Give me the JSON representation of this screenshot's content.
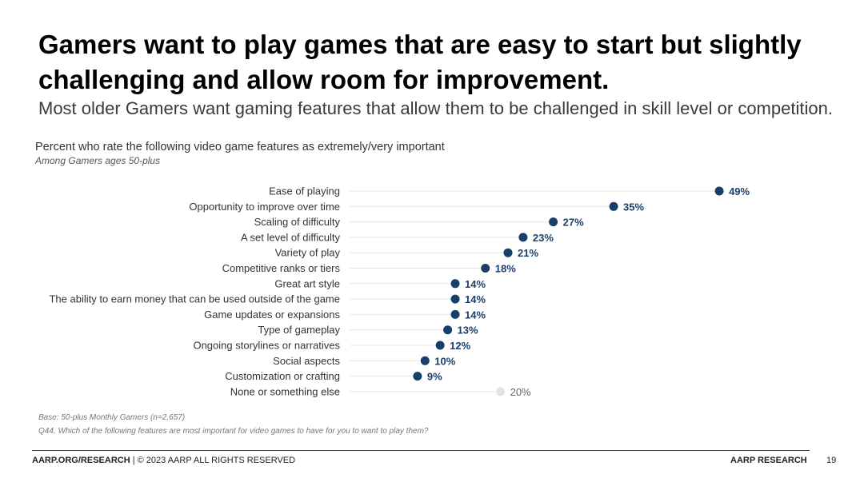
{
  "header": {
    "title": "Gamers want to play games that are easy to start but slightly challenging and allow room for improvement.",
    "subtitle": "Most older Gamers want gaming features that allow them to be challenged in skill level or competition."
  },
  "chart_data": {
    "type": "scatter",
    "title": "Percent who rate the following video game features as extremely/very important",
    "subtitle": "Among Gamers ages 50-plus",
    "categories": [
      "Ease of playing",
      "Opportunity to improve over time",
      "Scaling of difficulty",
      "A set level of difficulty",
      "Variety of play",
      "Competitive ranks or tiers",
      "Great art style",
      "The ability to earn money that can be used outside of the game",
      "Game updates or expansions",
      "Type of gameplay",
      "Ongoing storylines or narratives",
      "Social aspects",
      "Customization or crafting",
      "None or something else"
    ],
    "values": [
      49,
      35,
      27,
      23,
      21,
      18,
      14,
      14,
      14,
      13,
      12,
      10,
      9,
      20
    ],
    "value_labels": [
      "49%",
      "35%",
      "27%",
      "23%",
      "21%",
      "18%",
      "14%",
      "14%",
      "14%",
      "13%",
      "12%",
      "10%",
      "9%",
      "20%"
    ],
    "xlim": [
      0,
      60
    ],
    "grid": false,
    "legend": "none",
    "colors": {
      "point": "#173f6b",
      "point_muted": "#e3e3e3",
      "guide": "#e5e5e5"
    }
  },
  "footnotes": {
    "base": "Base: 50-plus Monthly Gamers (n=2,657)",
    "question": "Q44. Which of the following features are most important for video games to have for you to want to play them?"
  },
  "footer": {
    "source_bold": "AARP.ORG/RESEARCH",
    "source_rest": " | © 2023 AARP ALL RIGHTS RESERVED",
    "brand": "AARP RESEARCH",
    "page_number": "19"
  }
}
